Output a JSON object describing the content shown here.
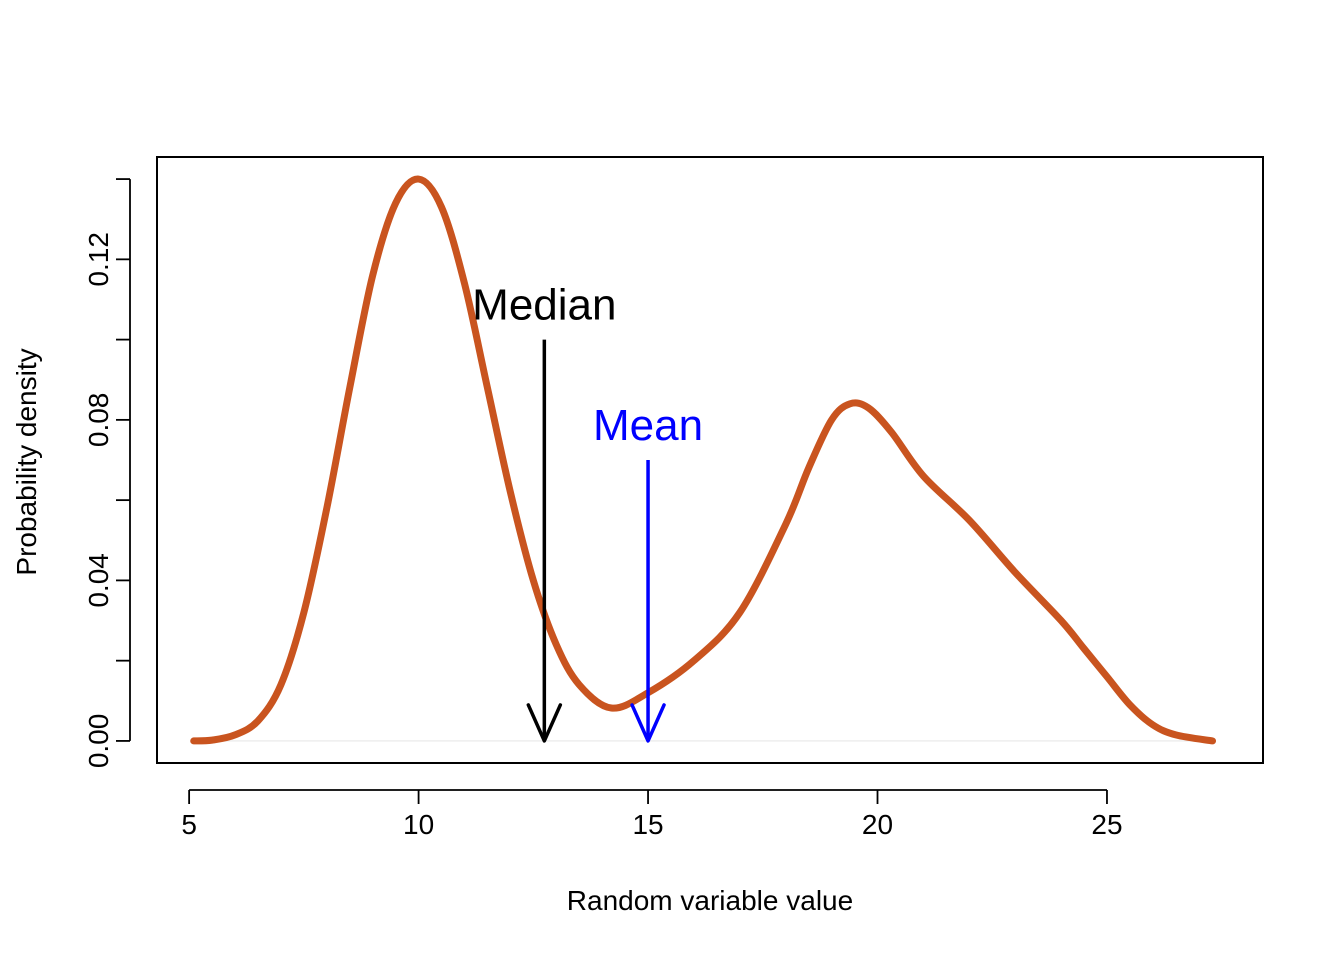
{
  "chart_data": {
    "type": "line",
    "title": "",
    "xlabel": "Random variable value",
    "ylabel": "Probability density",
    "xlim": [
      4.3,
      28.4
    ],
    "ylim": [
      -0.0055,
      0.1455
    ],
    "grid": false,
    "legend": null,
    "x_ticks": [
      5,
      10,
      15,
      20,
      25
    ],
    "x_tick_labels": [
      "5",
      "10",
      "15",
      "20",
      "25"
    ],
    "y_ticks": [
      0.0,
      0.04,
      0.08,
      0.12
    ],
    "y_tick_labels": [
      "0.00",
      "0.04",
      "0.08",
      "0.12"
    ],
    "colors": {
      "density": "#C9541F",
      "median": "#000000",
      "mean": "#0000FF",
      "baseline": "#EEEEEE"
    },
    "series": [
      {
        "x": [
          5.1,
          5.5,
          6.0,
          6.5,
          7.0,
          7.5,
          8.0,
          8.5,
          9.0,
          9.5,
          10.0,
          10.5,
          11.0,
          11.5,
          12.0,
          12.5,
          13.0,
          13.5,
          14.2,
          15.0,
          16.0,
          17.0,
          18.0,
          18.5,
          19.0,
          19.4,
          19.8,
          20.3,
          21.0,
          22.0,
          23.0,
          24.0,
          24.5,
          25.0,
          25.5,
          26.0,
          26.5,
          27.3
        ],
        "values": [
          0.0,
          0.0002,
          0.0015,
          0.005,
          0.014,
          0.032,
          0.058,
          0.088,
          0.116,
          0.134,
          0.14,
          0.133,
          0.114,
          0.088,
          0.062,
          0.04,
          0.024,
          0.014,
          0.0082,
          0.012,
          0.02,
          0.032,
          0.054,
          0.068,
          0.08,
          0.084,
          0.083,
          0.077,
          0.066,
          0.055,
          0.042,
          0.03,
          0.023,
          0.016,
          0.009,
          0.004,
          0.0015,
          0.0
        ]
      }
    ],
    "annotations": [
      {
        "label": "Median",
        "x": 12.74,
        "arrow_from_y": 0.1,
        "arrow_to_y": 0.0,
        "text_y": 0.105,
        "color": "#000000"
      },
      {
        "label": "Mean",
        "x": 15.0,
        "arrow_from_y": 0.07,
        "arrow_to_y": 0.0,
        "text_y": 0.075,
        "color": "#0000FF"
      }
    ]
  }
}
